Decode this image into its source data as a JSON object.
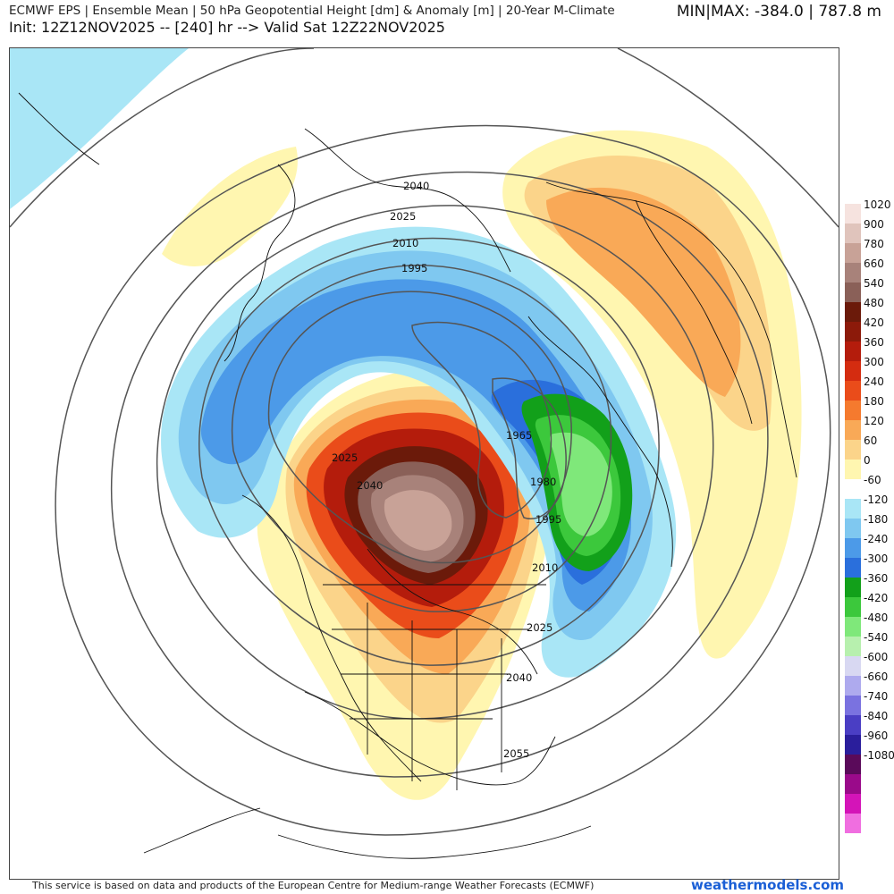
{
  "header": {
    "title": "ECMWF EPS | Ensemble Mean | 50 hPa Geopotential Height [dm] & Anomaly [m] | 20-Year M-Climate",
    "init": "Init: 12Z12NOV2025 -- [240] hr --> Valid Sat 12Z22NOV2025",
    "minmax": "MIN|MAX: -384.0 | 787.8 m"
  },
  "contour_labels": [
    "2040",
    "2025",
    "2010",
    "1995",
    "1965",
    "1980",
    "1995",
    "2010",
    "2025",
    "2040",
    "2055",
    "2025",
    "2040"
  ],
  "legend": {
    "steps": [
      {
        "label": "1020",
        "color": "#f6e3df"
      },
      {
        "label": "900",
        "color": "#e0c4bc"
      },
      {
        "label": "780",
        "color": "#c8a297"
      },
      {
        "label": "660",
        "color": "#a8827a"
      },
      {
        "label": "540",
        "color": "#8a6058"
      },
      {
        "label": "480",
        "color": "#6b1a0a"
      },
      {
        "label": "420",
        "color": "#8c1a0a"
      },
      {
        "label": "360",
        "color": "#b41c0c"
      },
      {
        "label": "300",
        "color": "#d42c10"
      },
      {
        "label": "240",
        "color": "#ea4c1a"
      },
      {
        "label": "180",
        "color": "#f57a2e"
      },
      {
        "label": "120",
        "color": "#f9a957"
      },
      {
        "label": "60",
        "color": "#fbd48a"
      },
      {
        "label": "0",
        "color": "#fff6b0"
      },
      {
        "label": "-60",
        "color": "#ffffff"
      },
      {
        "label": "-120",
        "color": "#a9e6f6"
      },
      {
        "label": "-180",
        "color": "#7fc8f0"
      },
      {
        "label": "-240",
        "color": "#4c9ae8"
      },
      {
        "label": "-300",
        "color": "#2a6fdc"
      },
      {
        "label": "-360",
        "color": "#12a01a"
      },
      {
        "label": "-420",
        "color": "#3cc83c"
      },
      {
        "label": "-480",
        "color": "#7fe87a"
      },
      {
        "label": "-540",
        "color": "#b7f0ae"
      },
      {
        "label": "-600",
        "color": "#d8d8f2"
      },
      {
        "label": "-660",
        "color": "#aeaaee"
      },
      {
        "label": "-740",
        "color": "#7a72e0"
      },
      {
        "label": "-840",
        "color": "#4a3ec4"
      },
      {
        "label": "-960",
        "color": "#2a1e9c"
      },
      {
        "label": "-1080",
        "color": "#5a0a5a"
      },
      {
        "label": "",
        "color": "#9a0a8a"
      },
      {
        "label": "",
        "color": "#d414b8"
      },
      {
        "label": "",
        "color": "#f06ee0"
      }
    ]
  },
  "footer": {
    "attribution": "This service is based on data and products of the European Centre for Medium-range Weather Forecasts (ECMWF)",
    "brand": "weathermodels.com"
  }
}
